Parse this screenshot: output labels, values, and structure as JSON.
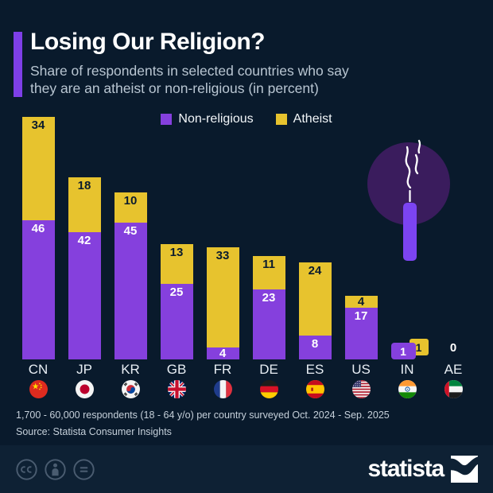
{
  "header": {
    "title": "Losing Our Religion?",
    "subtitle": [
      "Share of respondents in selected countries who say",
      "they are an atheist or non-religious (in percent)"
    ]
  },
  "chart_data": {
    "type": "bar",
    "stacked": true,
    "orientation": "vertical",
    "categories": [
      "CN",
      "JP",
      "KR",
      "GB",
      "FR",
      "DE",
      "ES",
      "US",
      "IN",
      "AE"
    ],
    "series": [
      {
        "name": "Non-religious",
        "color": "#8540dd",
        "label_color": "#ffffff",
        "values": [
          46,
          42,
          45,
          25,
          4,
          23,
          8,
          17,
          1,
          0
        ]
      },
      {
        "name": "Atheist",
        "color": "#e7c32e",
        "label_color": "#0b1c2e",
        "values": [
          34,
          18,
          10,
          13,
          33,
          11,
          24,
          4,
          1,
          0
        ]
      }
    ],
    "totals": [
      80,
      60,
      55,
      38,
      37,
      34,
      32,
      21,
      2,
      0
    ],
    "unit": "percent",
    "ylim": [
      0,
      80
    ],
    "grid": false,
    "axes_shown": false,
    "value_labels": "inside segments (badges for tiny segments, plain 0 for empty)",
    "legend_position": "top-center",
    "flag_style": "circular country flags under category labels"
  },
  "footer": {
    "note": "1,700 - 60,000 respondents (18 - 64 y/o) per country surveyed Oct. 2024 - Sep. 2025",
    "source": "Source: Statista Consumer Insights"
  },
  "branding": {
    "logo_text": "statista",
    "license_icons": [
      "cc-icon",
      "attribution-icon",
      "nd-icon"
    ]
  },
  "illustration": {
    "name": "smoking-incense-stick",
    "circle_color": "#3a1c5d",
    "stick_color": "#7c44f2",
    "smoke_color": "#ffffff"
  },
  "colors": {
    "background": "#091a2c",
    "footer_band": "#0e2134",
    "accent": "#7e3fe8",
    "title_text": "#ffffff",
    "subtitle_text": "#b9c6d2",
    "country_label_text": "#e8eef4",
    "note_text": "#c5d0da",
    "license_icon": "#4a5c70"
  }
}
